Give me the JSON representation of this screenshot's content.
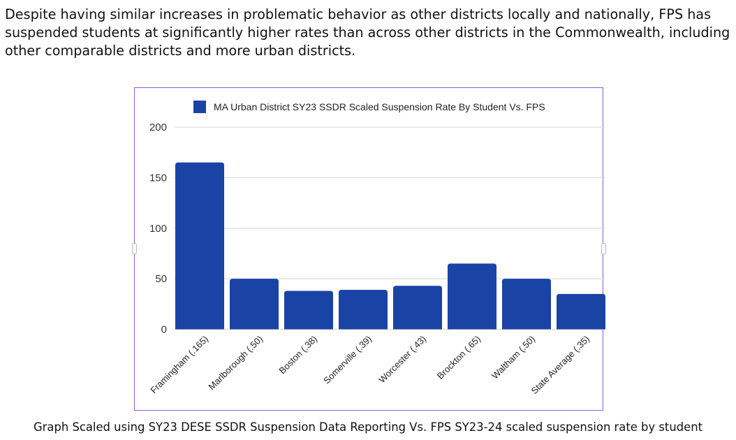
{
  "intro_text": "Despite having similar increases in problematic behavior as other districts locally and nationally, FPS has suspended students at significantly higher rates than across other districts in the Commonwealth, including other comparable districts and more urban districts.",
  "caption": "Graph Scaled using SY23 DESE SSDR Suspension Data Reporting Vs. FPS SY23-24 scaled suspension rate by student",
  "chart_data": {
    "type": "bar",
    "categories": [
      "Framingham (.165)",
      "Marlborough (.50)",
      "Boston (.38)",
      "Somerville (.39)",
      "Worcester (.43)",
      "Brockton (.65)",
      "Waltham (.50)",
      "State Average (.35)"
    ],
    "series": [
      {
        "name": "MA Urban District SY23 SSDR Scaled Suspension Rate By Student Vs. FPS",
        "values": [
          165,
          50,
          38,
          39,
          43,
          65,
          50,
          35
        ],
        "color": "#1a43a6"
      }
    ],
    "yticks": [
      0,
      50,
      100,
      150,
      200
    ],
    "ylim": [
      0,
      200
    ],
    "grid": true,
    "legend_position": "top",
    "gridline_color": "#d6d6d6",
    "frame_border_color": "#8a5cd6"
  }
}
